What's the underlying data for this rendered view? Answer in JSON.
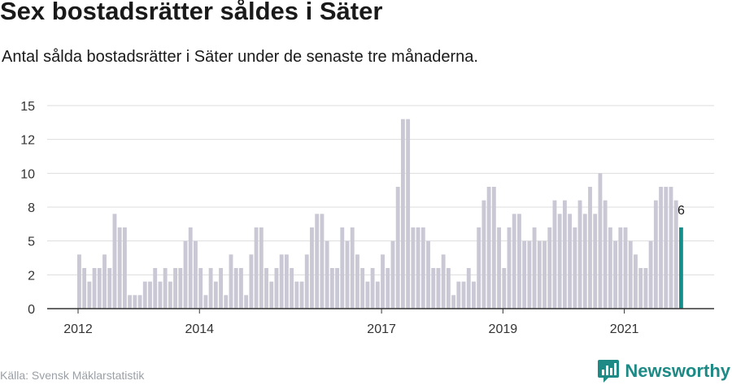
{
  "title": "Sex bostadsrätter såldes i Säter",
  "subtitle": "Antal sålda bostadsrätter i Säter under de senaste tre månaderna.",
  "source": "Källa: Svensk Mäklarstatistik",
  "brand": {
    "name": "Newsworthy",
    "icon": "newsworthy-logo-icon",
    "color": "#1d8a86"
  },
  "colors": {
    "bar": "#c9c8d4",
    "highlight": "#13908b",
    "grid": "#dddddd",
    "axis": "#333333"
  },
  "chart_data": {
    "type": "bar",
    "x_ticks": [
      "2012",
      "2014",
      "2017",
      "2019",
      "2021"
    ],
    "y_ticks": [
      "0",
      "2",
      "5",
      "8",
      "10",
      "12",
      "15"
    ],
    "ylim": [
      0,
      15
    ],
    "grid": true,
    "highlight_label": "6",
    "series": [
      {
        "values": [
          4,
          3,
          2,
          3,
          3,
          4,
          3,
          7,
          6,
          6,
          1,
          1,
          1,
          2,
          2,
          3,
          2,
          3,
          2,
          3,
          3,
          5,
          6,
          5,
          3,
          1,
          3,
          2,
          3,
          1,
          4,
          3,
          3,
          1,
          4,
          6,
          6,
          3,
          2,
          3,
          4,
          4,
          3,
          2,
          2,
          4,
          6,
          7,
          7,
          5,
          3,
          3,
          6,
          5,
          6,
          4,
          3,
          2,
          3,
          2,
          4,
          3,
          5,
          9,
          14,
          14,
          6,
          6,
          6,
          5,
          3,
          3,
          4,
          3,
          1,
          2,
          2,
          3,
          2,
          6,
          8,
          9,
          9,
          6,
          3,
          6,
          7,
          7,
          5,
          5,
          6,
          5,
          5,
          6,
          8,
          7,
          8,
          7,
          6,
          8,
          7,
          9,
          7,
          10,
          8,
          6,
          5,
          6,
          6,
          5,
          4,
          3,
          3,
          5,
          8,
          9,
          9,
          9,
          8,
          6
        ]
      }
    ]
  }
}
